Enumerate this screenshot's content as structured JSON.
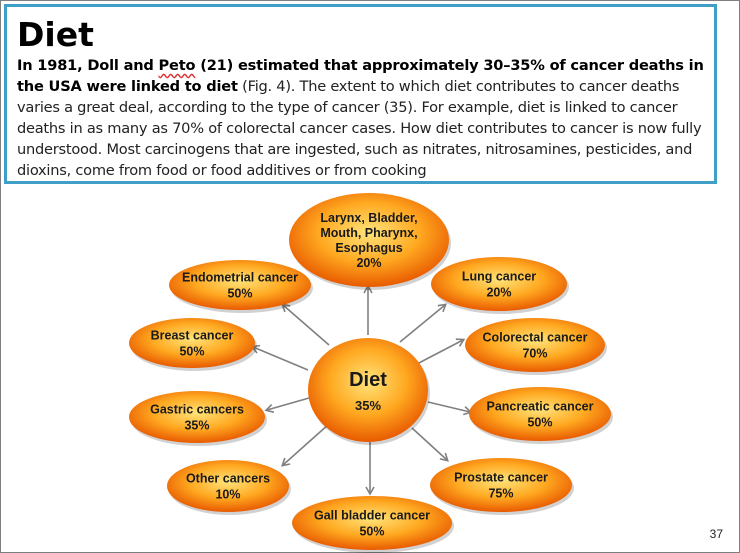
{
  "slide": {
    "title": "Diet",
    "body_bold": "In 1981, Doll and ",
    "body_bold_name": "Peto",
    "body_bold_rest": " (21) estimated that approximately 30–35% of cancer deaths in the USA were linked to diet",
    "body_normal": " (Fig. 4). The extent to which diet contributes to cancer deaths varies a great deal, according to the type of cancer (35). For example, diet is linked to cancer deaths in as many as 70% of colorectal cancer cases. How diet contributes to cancer is now fully understood. Most carcinogens that are ingested, such as nitrates, nitrosamines, pesticides, and dioxins, come from food or food additives or from cooking",
    "page_number": "37"
  },
  "diagram": {
    "center": {
      "label": "Diet",
      "value": "35%"
    },
    "nodes": [
      {
        "lines": [
          "Larynx, Bladder,",
          "Mouth, Pharynx,",
          "Esophagus"
        ],
        "value": "20%"
      },
      {
        "lines": [
          "Lung cancer"
        ],
        "value": "20%"
      },
      {
        "lines": [
          "Colorectal cancer"
        ],
        "value": "70%"
      },
      {
        "lines": [
          "Pancreatic cancer"
        ],
        "value": "50%"
      },
      {
        "lines": [
          "Prostate cancer"
        ],
        "value": "75%"
      },
      {
        "lines": [
          "Gall bladder cancer"
        ],
        "value": "50%"
      },
      {
        "lines": [
          "Other cancers"
        ],
        "value": "10%"
      },
      {
        "lines": [
          "Gastric cancers"
        ],
        "value": "35%"
      },
      {
        "lines": [
          "Breast cancer"
        ],
        "value": "50%"
      },
      {
        "lines": [
          "Endometrial cancer"
        ],
        "value": "50%"
      }
    ],
    "colors": {
      "fill_inner": "#ffe47a",
      "fill_mid": "#ffa820",
      "fill_outer": "#e85a00",
      "arrow": "#808080"
    }
  }
}
